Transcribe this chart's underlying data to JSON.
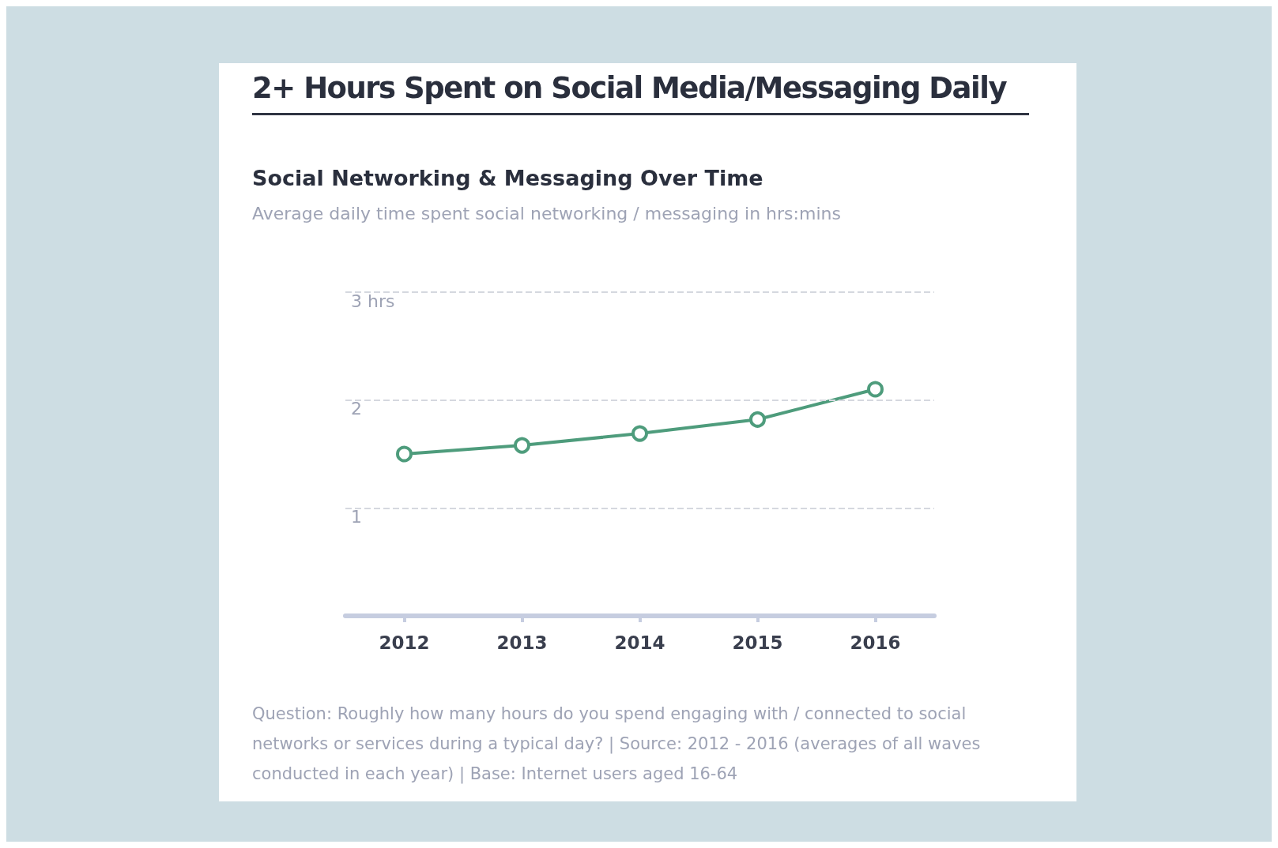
{
  "chart_data": {
    "type": "line",
    "title": "2+ Hours Spent on Social Media/Messaging Daily",
    "subtitle": "Social Networking & Messaging Over Time",
    "ylabel": "Average daily time spent social networking / messaging in hrs:mins",
    "categories": [
      "2012",
      "2013",
      "2014",
      "2015",
      "2016"
    ],
    "series": [
      {
        "color": "#4e9c7c",
        "values": [
          1.5,
          1.58,
          1.69,
          1.82,
          2.1
        ]
      }
    ],
    "ylim": [
      0,
      3
    ],
    "yticks": [
      1,
      2,
      {
        "value": 3,
        "label": "3 hrs"
      }
    ],
    "grid": "y",
    "marker": "circle",
    "line_style": "solid",
    "annotations": [
      "Question: Roughly how many hours do you spend engaging with / connected to social networks or services during a typical day? | Source: 2012 - 2016 (averages of all waves conducted in each year) | Base: Internet users aged 16-64"
    ]
  }
}
